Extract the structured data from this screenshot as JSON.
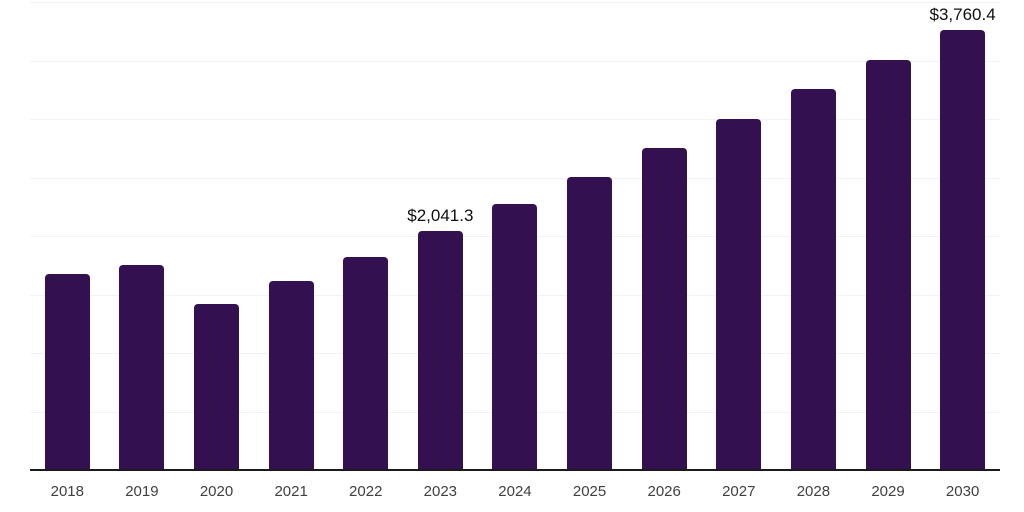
{
  "chart_data": {
    "type": "bar",
    "title": "",
    "xlabel": "",
    "ylabel": "",
    "categories": [
      "2018",
      "2019",
      "2020",
      "2021",
      "2022",
      "2023",
      "2024",
      "2025",
      "2026",
      "2027",
      "2028",
      "2029",
      "2030"
    ],
    "values": [
      1675,
      1752,
      1419,
      1615,
      1820,
      2041.3,
      2278,
      2503,
      2752,
      3000,
      3256,
      3504,
      3760.4
    ],
    "value_labels": [
      null,
      null,
      null,
      null,
      null,
      "$2,041.3",
      null,
      null,
      null,
      null,
      null,
      null,
      "$3,760.4"
    ],
    "ylim": [
      0,
      4000
    ],
    "gridline_step": 500,
    "grid": "horizontal",
    "legend": "none",
    "y_axis_tick_labels_visible": false,
    "colors": {
      "bar": "#331150",
      "gridline": "#f2f2f2",
      "axis": "#1a1a1a",
      "tick_label": "#404040",
      "data_label": "#101010",
      "background": "#ffffff"
    }
  }
}
